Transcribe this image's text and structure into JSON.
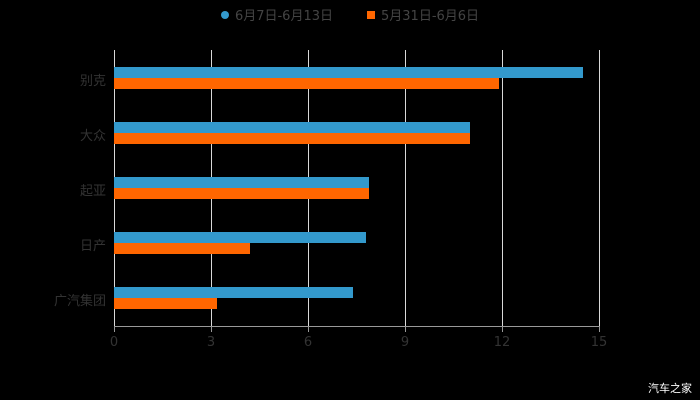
{
  "chart_data": {
    "type": "bar",
    "orientation": "horizontal",
    "categories": [
      "别克",
      "大众",
      "起亚",
      "日产",
      "广汽集团"
    ],
    "series": [
      {
        "name": "6月7日-6月13日",
        "color": "#3399cc",
        "values": [
          14.5,
          11.0,
          7.9,
          7.8,
          7.4
        ]
      },
      {
        "name": "5月31日-6月6日",
        "color": "#ff6600",
        "values": [
          11.9,
          11.0,
          7.9,
          4.2,
          3.2
        ]
      }
    ],
    "xlim": [
      0,
      15
    ],
    "xticks": [
      "0",
      "3",
      "6",
      "9",
      "12",
      "15"
    ],
    "grid": true,
    "legend_position": "top",
    "title": "",
    "xlabel": "",
    "ylabel": ""
  },
  "legend": [
    {
      "label": "6月7日-6月13日",
      "color": "#3399cc"
    },
    {
      "label": "5月31日-6月6日",
      "color": "#ff6600"
    }
  ],
  "watermark": "汽车之家"
}
